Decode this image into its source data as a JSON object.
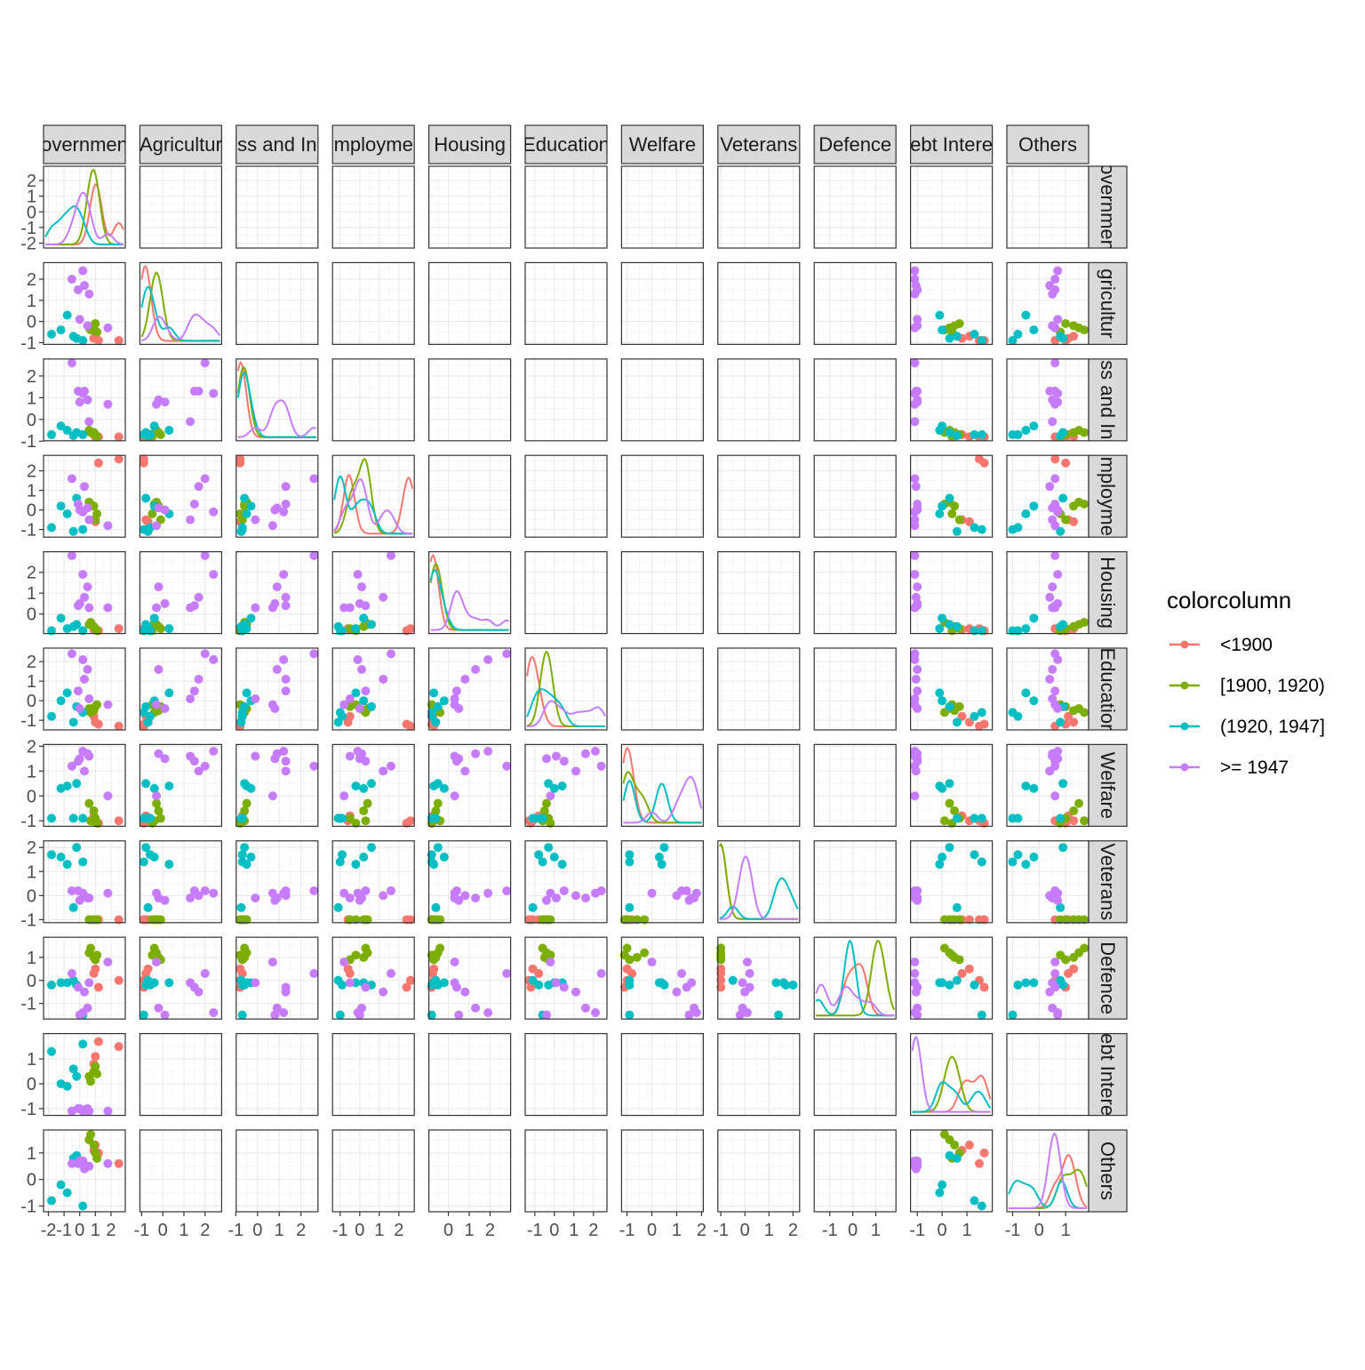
{
  "chart_data": {
    "type": "scatter",
    "subtype": "pairs-matrix",
    "variables": [
      "Government",
      "Agriculture",
      "Business and Industry",
      "Employment",
      "Housing",
      "Education",
      "Welfare",
      "Veterans",
      "Defence",
      "Debt Interest",
      "Others"
    ],
    "strip_labels_top": [
      "overnmen",
      "Agricultur",
      "ss and In",
      "mployme",
      "Housing",
      "Education",
      "Welfare",
      "Veterans",
      "Defence",
      "ebt Intere",
      "Others"
    ],
    "strip_labels_right": [
      "overnmen",
      "gricultur",
      "ss and In",
      "mployme",
      "Housing",
      "Educatior",
      "Welfare",
      "Veterans",
      "Defence",
      "ebt Intere",
      "Others"
    ],
    "x_ticks": [
      [
        "-2",
        "-1",
        "0",
        "1",
        "2"
      ],
      [
        "-1",
        "0",
        "1",
        "2"
      ],
      [
        "-1",
        "0",
        "1",
        "2"
      ],
      [
        "-1",
        "0",
        "1",
        "2"
      ],
      [
        "0",
        "1",
        "2"
      ],
      [
        "-1",
        "0",
        "1",
        "2"
      ],
      [
        "-1",
        "0",
        "1",
        "2"
      ],
      [
        "-1",
        "0",
        "1",
        "2"
      ],
      [
        "-1",
        "0",
        "1"
      ],
      [
        "-1",
        "0",
        "1"
      ],
      [
        "-1",
        "0",
        "1"
      ]
    ],
    "y_ticks": [
      [
        "-2",
        "-1",
        "0",
        "1",
        "2"
      ],
      [
        "-1",
        "0",
        "1",
        "2"
      ],
      [
        "-1",
        "0",
        "1",
        "2"
      ],
      [
        "-1",
        "0",
        "1",
        "2"
      ],
      [
        "0",
        "1",
        "2"
      ],
      [
        "-1",
        "0",
        "1",
        "2"
      ],
      [
        "-1",
        "0",
        "1",
        "2"
      ],
      [
        "-1",
        "0",
        "1",
        "2"
      ],
      [
        "-1",
        "0",
        "1"
      ],
      [
        "-1",
        "0",
        "1"
      ],
      [
        "-1",
        "0",
        "1"
      ]
    ],
    "ranges": [
      [
        -2.2,
        2.8
      ],
      [
        -1.0,
        2.7
      ],
      [
        -0.9,
        2.7
      ],
      [
        -1.3,
        2.7
      ],
      [
        -0.85,
        2.9
      ],
      [
        -1.4,
        2.6
      ],
      [
        -1.15,
        2.0
      ],
      [
        -1.05,
        2.2
      ],
      [
        -1.6,
        1.8
      ],
      [
        -1.2,
        1.95
      ],
      [
        -1.15,
        1.8
      ]
    ],
    "groups": [
      {
        "name": "<1900",
        "color": "#F8766D"
      },
      {
        "name": "[1900, 1920)",
        "color": "#7CAE00"
      },
      {
        "name": "(1920, 1947]",
        "color": "#00BFC4"
      },
      {
        "name": ">= 1947",
        "color": "#C77CFF"
      }
    ],
    "legend": {
      "title": "colorcolumn",
      "position": "right"
    },
    "scatter_panels": [
      [
        1,
        0
      ],
      [
        2,
        0
      ],
      [
        2,
        1
      ],
      [
        3,
        0
      ],
      [
        3,
        1
      ],
      [
        3,
        2
      ],
      [
        4,
        0
      ],
      [
        4,
        1
      ],
      [
        4,
        2
      ],
      [
        4,
        3
      ],
      [
        5,
        0
      ],
      [
        5,
        1
      ],
      [
        5,
        2
      ],
      [
        5,
        3
      ],
      [
        5,
        4
      ],
      [
        6,
        0
      ],
      [
        6,
        1
      ],
      [
        6,
        2
      ],
      [
        6,
        3
      ],
      [
        6,
        4
      ],
      [
        6,
        5
      ],
      [
        7,
        0
      ],
      [
        7,
        1
      ],
      [
        7,
        2
      ],
      [
        7,
        3
      ],
      [
        7,
        4
      ],
      [
        7,
        5
      ],
      [
        7,
        6
      ],
      [
        8,
        0
      ],
      [
        8,
        1
      ],
      [
        8,
        2
      ],
      [
        8,
        3
      ],
      [
        8,
        4
      ],
      [
        8,
        5
      ],
      [
        8,
        6
      ],
      [
        8,
        7
      ],
      [
        9,
        0
      ],
      [
        10,
        0
      ],
      [
        1,
        9
      ],
      [
        2,
        9
      ],
      [
        3,
        9
      ],
      [
        4,
        9
      ],
      [
        5,
        9
      ],
      [
        6,
        9
      ],
      [
        7,
        9
      ],
      [
        8,
        9
      ],
      [
        10,
        9
      ],
      [
        1,
        10
      ],
      [
        2,
        10
      ],
      [
        3,
        10
      ],
      [
        4,
        10
      ],
      [
        5,
        10
      ],
      [
        6,
        10
      ],
      [
        7,
        10
      ],
      [
        8,
        10
      ]
    ],
    "diagonal": "density",
    "grid": true,
    "observations": [
      {
        "group": 0,
        "values": [
          2.5,
          -0.9,
          -0.8,
          2.6,
          -0.7,
          -1.3,
          -1.0,
          -1.0,
          0.0,
          1.5,
          0.6
        ]
      },
      {
        "group": 0,
        "values": [
          1.0,
          -0.7,
          -0.8,
          -0.6,
          -0.7,
          -1.1,
          -1.0,
          -1.0,
          0.5,
          1.1,
          1.3
        ]
      },
      {
        "group": 0,
        "values": [
          0.9,
          -0.8,
          -0.7,
          -0.5,
          -0.75,
          -0.8,
          -0.8,
          -1.0,
          0.3,
          0.8,
          1.1
        ]
      },
      {
        "group": 0,
        "values": [
          1.2,
          -0.9,
          -0.8,
          2.4,
          -0.8,
          -1.2,
          -1.1,
          -1.0,
          -0.3,
          1.7,
          1.0
        ]
      },
      {
        "group": 1,
        "values": [
          0.6,
          -0.3,
          -0.5,
          0.4,
          -0.5,
          -0.4,
          -0.3,
          -1.0,
          1.2,
          0.3,
          1.5
        ]
      },
      {
        "group": 1,
        "values": [
          0.9,
          -0.2,
          -0.6,
          0.2,
          -0.6,
          -0.5,
          -0.6,
          -1.0,
          1.0,
          0.5,
          1.3
        ]
      },
      {
        "group": 1,
        "values": [
          1.0,
          -0.1,
          -0.7,
          -0.5,
          -0.7,
          -0.3,
          -0.9,
          -1.0,
          0.9,
          0.7,
          1.0
        ]
      },
      {
        "group": 1,
        "values": [
          0.7,
          -0.4,
          -0.6,
          0.3,
          -0.4,
          -0.6,
          -1.0,
          -1.0,
          1.4,
          0.1,
          1.7
        ]
      },
      {
        "group": 1,
        "values": [
          1.1,
          -0.5,
          -0.8,
          -0.2,
          -0.8,
          -0.2,
          -1.1,
          -1.0,
          1.1,
          0.4,
          0.8
        ]
      },
      {
        "group": 2,
        "values": [
          -0.8,
          0.3,
          -0.5,
          -0.2,
          -0.7,
          0.4,
          0.4,
          1.3,
          -0.1,
          -0.1,
          -0.5
        ]
      },
      {
        "group": 2,
        "values": [
          -1.8,
          -0.6,
          -0.7,
          -0.9,
          -0.8,
          -0.8,
          -0.9,
          1.7,
          -0.2,
          1.3,
          -0.8
        ]
      },
      {
        "group": 2,
        "values": [
          -0.4,
          -0.7,
          -0.75,
          -1.1,
          -0.6,
          -1.1,
          -0.9,
          -0.5,
          0.0,
          0.6,
          0.8
        ]
      },
      {
        "group": 2,
        "values": [
          -0.2,
          -0.8,
          -0.6,
          0.6,
          -0.5,
          -0.3,
          0.5,
          2.0,
          -0.2,
          0.3,
          0.9
        ]
      },
      {
        "group": 2,
        "values": [
          0.2,
          -0.9,
          -0.7,
          -1.0,
          -0.8,
          -0.6,
          -0.9,
          1.4,
          -1.5,
          1.6,
          -1.0
        ]
      },
      {
        "group": 2,
        "values": [
          -1.2,
          -0.4,
          -0.3,
          0.2,
          -0.2,
          0.0,
          0.3,
          1.6,
          -0.1,
          0.0,
          -0.2
        ]
      },
      {
        "group": 3,
        "values": [
          -0.1,
          1.5,
          1.3,
          0.3,
          0.4,
          0.5,
          1.4,
          0.2,
          -0.3,
          -1.0,
          0.6
        ]
      },
      {
        "group": 3,
        "values": [
          0.2,
          2.4,
          1.2,
          -0.1,
          1.9,
          2.1,
          1.8,
          0.1,
          -1.4,
          -1.1,
          0.7
        ]
      },
      {
        "group": 3,
        "values": [
          0.5,
          -0.2,
          0.9,
          0.1,
          1.3,
          1.6,
          1.7,
          -0.1,
          -1.2,
          -1.0,
          0.5
        ]
      },
      {
        "group": 3,
        "values": [
          -0.5,
          2.0,
          2.6,
          1.6,
          2.8,
          2.4,
          1.2,
          0.2,
          0.3,
          -1.1,
          0.6
        ]
      },
      {
        "group": 3,
        "values": [
          0.3,
          1.7,
          1.3,
          1.2,
          0.8,
          1.1,
          1.0,
          0.0,
          -0.5,
          -1.05,
          0.4
        ]
      },
      {
        "group": 3,
        "values": [
          1.8,
          -0.3,
          0.7,
          -0.8,
          0.3,
          -0.2,
          0.0,
          0.1,
          0.8,
          -1.1,
          0.6
        ]
      },
      {
        "group": 3,
        "values": [
          0.0,
          0.1,
          0.8,
          0.0,
          0.5,
          -0.4,
          1.5,
          -0.2,
          -1.5,
          -1.0,
          0.7
        ]
      },
      {
        "group": 3,
        "values": [
          0.6,
          1.3,
          -0.1,
          -0.5,
          0.3,
          0.1,
          1.6,
          -0.1,
          -0.1,
          -1.1,
          0.5
        ]
      }
    ]
  }
}
